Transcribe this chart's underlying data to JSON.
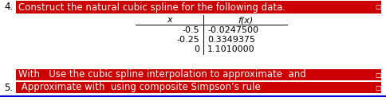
{
  "number_4": "4.",
  "heading_4": "Construct the natural cubic spline for the following data.",
  "heading_4_bg": "#cc0000",
  "heading_4_color": "#ffffff",
  "col_x": "x",
  "col_fx": "f(x)",
  "rows": [
    [
      "-0.5",
      "-0.0247500"
    ],
    [
      "-0.25",
      "0.3349375"
    ],
    [
      "0",
      "1.1010000"
    ]
  ],
  "with_line_bg": "#cc0000",
  "with_line_color": "#ffffff",
  "with_line_text": "With   Use the cubic spline interpolation to approximate  and  ",
  "number_5": "5.",
  "line5_bg": "#cc0000",
  "line5_color": "#ffffff",
  "line5_text": " Approximate with  using composite Simpson’s rule",
  "bottom_line_color": "#0000cc",
  "fig_bg": "#ffffff",
  "font_size_heading": 8.5,
  "font_size_table": 8,
  "font_size_body": 8.5
}
